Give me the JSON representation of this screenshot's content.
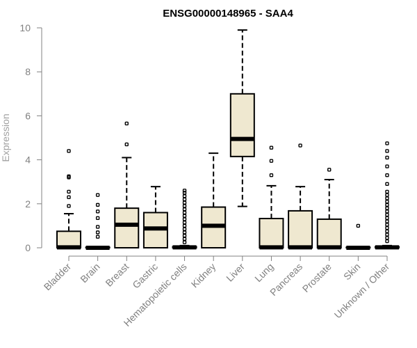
{
  "chart_data": {
    "type": "boxplot",
    "title": "ENSG00000148965 - SAA4",
    "ylabel": "Expression",
    "xlabel": "",
    "ylim": [
      0,
      10
    ],
    "yticks": [
      0,
      2,
      4,
      6,
      8,
      10
    ],
    "grid": false,
    "colors": {
      "box_fill": "#efe8d0",
      "box_stroke": "#000000",
      "axis": "#808080"
    },
    "categories": [
      "Bladder",
      "Brain",
      "Breast",
      "Gastric",
      "Hematopoietic cells",
      "Kidney",
      "Liver",
      "Lung",
      "Pancreas",
      "Prostate",
      "Skin",
      "Unknown / Other"
    ],
    "boxes": [
      {
        "category": "Bladder",
        "min": 0,
        "q1": 0,
        "median": 0.02,
        "q3": 0.75,
        "max": 1.55,
        "outliers": [
          1.9,
          2.3,
          2.55,
          3.2,
          3.25,
          4.4
        ]
      },
      {
        "category": "Brain",
        "min": 0,
        "q1": 0,
        "median": 0,
        "q3": 0.02,
        "max": 0.05,
        "outliers": [
          0.5,
          0.7,
          0.95,
          1.35,
          1.65,
          1.95,
          2.4
        ]
      },
      {
        "category": "Breast",
        "min": 0,
        "q1": 0,
        "median": 1.05,
        "q3": 1.8,
        "max": 4.1,
        "outliers": [
          4.7,
          5.65
        ]
      },
      {
        "category": "Gastric",
        "min": 0,
        "q1": 0,
        "median": 0.88,
        "q3": 1.6,
        "max": 2.78,
        "outliers": []
      },
      {
        "category": "Hematopoietic cells",
        "min": 0,
        "q1": 0,
        "median": 0.02,
        "q3": 0.05,
        "max": 0.1,
        "outliers": [
          0.25,
          0.4,
          0.55,
          0.7,
          0.85,
          1.0,
          1.15,
          1.3,
          1.45,
          1.6,
          1.75,
          1.9,
          2.05,
          2.2,
          2.35,
          2.5,
          2.6
        ]
      },
      {
        "category": "Kidney",
        "min": 0,
        "q1": 0,
        "median": 1.0,
        "q3": 1.85,
        "max": 4.3,
        "outliers": []
      },
      {
        "category": "Liver",
        "min": 1.88,
        "q1": 4.15,
        "median": 4.95,
        "q3": 7.0,
        "max": 9.9,
        "outliers": []
      },
      {
        "category": "Lung",
        "min": 0,
        "q1": 0,
        "median": 0.02,
        "q3": 1.33,
        "max": 2.82,
        "outliers": [
          3.3,
          3.95,
          4.55
        ]
      },
      {
        "category": "Pancreas",
        "min": 0,
        "q1": 0,
        "median": 0.02,
        "q3": 1.68,
        "max": 2.78,
        "outliers": [
          4.65
        ]
      },
      {
        "category": "Prostate",
        "min": 0,
        "q1": 0,
        "median": 0.02,
        "q3": 1.3,
        "max": 3.1,
        "outliers": [
          3.55
        ]
      },
      {
        "category": "Skin",
        "min": 0,
        "q1": 0,
        "median": 0,
        "q3": 0.02,
        "max": 0.05,
        "outliers": [
          1.0
        ]
      },
      {
        "category": "Unknown / Other",
        "min": 0,
        "q1": 0,
        "median": 0.02,
        "q3": 0.05,
        "max": 0.1,
        "outliers": [
          0.3,
          0.45,
          0.6,
          0.75,
          0.9,
          1.05,
          1.2,
          1.35,
          1.5,
          1.65,
          1.8,
          1.95,
          2.1,
          2.25,
          2.4,
          2.55,
          2.9,
          3.3,
          3.7,
          4.1,
          4.4,
          4.75
        ]
      }
    ]
  }
}
